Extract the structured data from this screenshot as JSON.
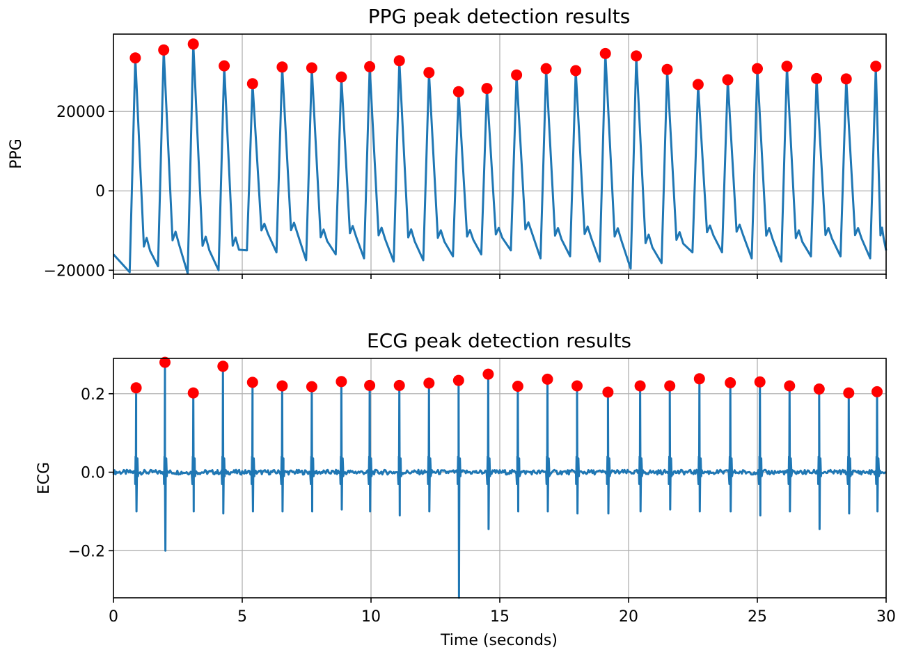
{
  "colors": {
    "signal": "#1f77b4",
    "peaks": "#ff0000",
    "grid": "#b0b0b0"
  },
  "chart_data": [
    {
      "type": "line",
      "title": "PPG peak detection results",
      "xlabel": "",
      "ylabel": "PPG",
      "xlim": [
        0,
        30
      ],
      "ylim": [
        -21000,
        39500
      ],
      "grid": true,
      "x_ticks": [
        0,
        5,
        10,
        15,
        20,
        25,
        30
      ],
      "x_tick_labels": [
        "",
        "",
        "",
        "",
        "",
        "",
        ""
      ],
      "y_ticks": [
        -20000,
        0,
        20000
      ],
      "y_tick_labels": [
        "−20000",
        "0",
        "20000"
      ],
      "series": [
        {
          "role": "signal",
          "beat_times": [
            0.85,
            1.95,
            3.1,
            4.3,
            5.4,
            6.55,
            7.7,
            8.85,
            9.95,
            11.1,
            12.25,
            13.4,
            14.5,
            15.65,
            16.8,
            17.95,
            19.1,
            20.3,
            21.5,
            22.7,
            23.85,
            25.0,
            26.15,
            27.3,
            28.45,
            29.6
          ],
          "peak_values": [
            33500,
            35500,
            37000,
            31500,
            27000,
            31200,
            31000,
            28700,
            31300,
            32800,
            29800,
            25000,
            25800,
            29200,
            30800,
            30300,
            34600,
            34000,
            30600,
            26800,
            28000,
            30800,
            31400,
            28300,
            28200,
            31400
          ],
          "trough_values": [
            -20500,
            -19000,
            -20800,
            -20000,
            -15000,
            -15500,
            -17500,
            -16000,
            -17000,
            -17800,
            -17500,
            -16500,
            -16000,
            -15000,
            -17000,
            -16500,
            -17800,
            -19600,
            -18200,
            -15500,
            -15500,
            -17000,
            -17800,
            -16500,
            -16500,
            -17000
          ],
          "start_value": -16000,
          "end_value": -15000
        },
        {
          "role": "peaks",
          "x": [
            0.85,
            1.95,
            3.1,
            4.3,
            5.4,
            6.55,
            7.7,
            8.85,
            9.95,
            11.1,
            12.25,
            13.4,
            14.5,
            15.65,
            16.8,
            17.95,
            19.1,
            20.3,
            21.5,
            22.7,
            23.85,
            25.0,
            26.15,
            27.3,
            28.45,
            29.6
          ],
          "y": [
            33500,
            35500,
            37000,
            31500,
            27000,
            31200,
            31000,
            28700,
            31300,
            32800,
            29800,
            25000,
            25800,
            29200,
            30800,
            30300,
            34600,
            34000,
            30600,
            26800,
            28000,
            30800,
            31400,
            28300,
            28200,
            31400
          ]
        }
      ]
    },
    {
      "type": "line",
      "title": "ECG peak detection results",
      "xlabel": "Time (seconds)",
      "ylabel": "ECG",
      "xlim": [
        0,
        30
      ],
      "ylim": [
        -0.32,
        0.29
      ],
      "grid": true,
      "x_ticks": [
        0,
        5,
        10,
        15,
        20,
        25,
        30
      ],
      "x_tick_labels": [
        "0",
        "5",
        "10",
        "15",
        "20",
        "25",
        "30"
      ],
      "y_ticks": [
        -0.2,
        0.0,
        0.2
      ],
      "y_tick_labels": [
        "−0.2",
        "0.0",
        "0.2"
      ],
      "series": [
        {
          "role": "signal",
          "beat_times": [
            0.88,
            2.0,
            3.1,
            4.25,
            5.4,
            6.55,
            7.7,
            8.85,
            9.95,
            11.1,
            12.25,
            13.4,
            14.55,
            15.7,
            16.85,
            18.0,
            19.2,
            20.45,
            21.6,
            22.75,
            23.95,
            25.1,
            26.25,
            27.4,
            28.55,
            29.65
          ],
          "peak_values": [
            0.215,
            0.28,
            0.202,
            0.27,
            0.229,
            0.22,
            0.218,
            0.231,
            0.221,
            0.221,
            0.227,
            0.234,
            0.25,
            0.219,
            0.237,
            0.22,
            0.204,
            0.22,
            0.22,
            0.238,
            0.228,
            0.23,
            0.22,
            0.212,
            0.202,
            0.205
          ],
          "s_values": [
            -0.1,
            -0.2,
            -0.1,
            -0.105,
            -0.1,
            -0.1,
            -0.1,
            -0.095,
            -0.1,
            -0.11,
            -0.1,
            -0.33,
            -0.145,
            -0.1,
            -0.1,
            -0.105,
            -0.105,
            -0.1,
            -0.095,
            -0.1,
            -0.1,
            -0.11,
            -0.1,
            -0.145,
            -0.105,
            -0.1
          ]
        },
        {
          "role": "peaks",
          "x": [
            0.88,
            2.0,
            3.1,
            4.25,
            5.4,
            6.55,
            7.7,
            8.85,
            9.95,
            11.1,
            12.25,
            13.4,
            14.55,
            15.7,
            16.85,
            18.0,
            19.2,
            20.45,
            21.6,
            22.75,
            23.95,
            25.1,
            26.25,
            27.4,
            28.55,
            29.65
          ],
          "y": [
            0.215,
            0.28,
            0.202,
            0.27,
            0.229,
            0.22,
            0.218,
            0.231,
            0.221,
            0.221,
            0.227,
            0.234,
            0.25,
            0.219,
            0.237,
            0.22,
            0.204,
            0.22,
            0.22,
            0.238,
            0.228,
            0.23,
            0.22,
            0.212,
            0.202,
            0.205
          ]
        }
      ]
    }
  ]
}
